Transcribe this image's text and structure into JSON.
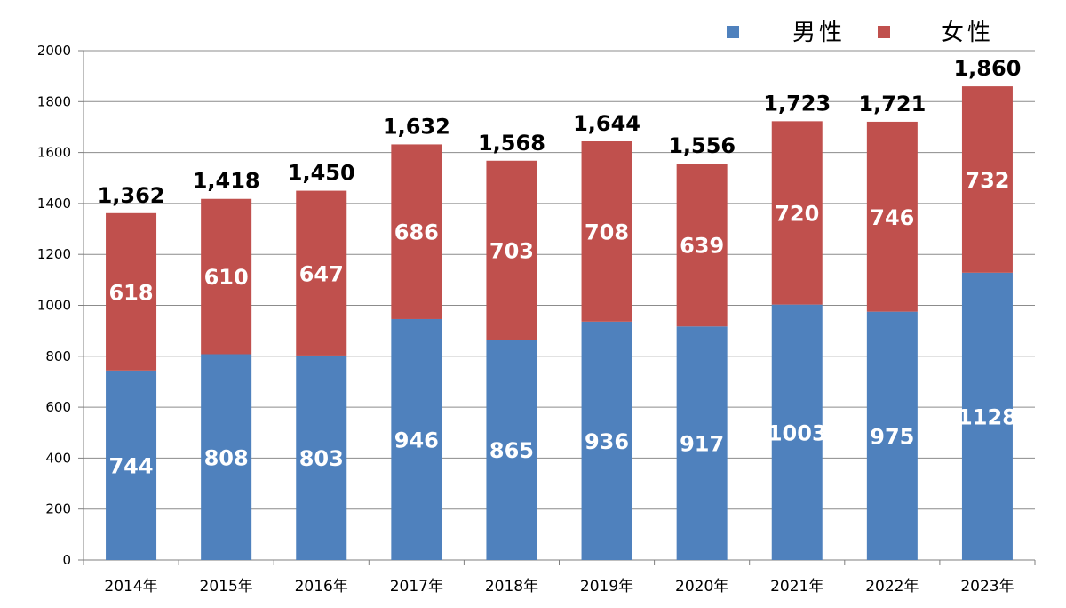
{
  "chart_data": {
    "type": "bar",
    "stacked": true,
    "categories": [
      "2014年",
      "2015年",
      "2016年",
      "2017年",
      "2018年",
      "2019年",
      "2020年",
      "2021年",
      "2022年",
      "2023年"
    ],
    "series": [
      {
        "name": "男性",
        "color": "#4F81BD",
        "values": [
          744,
          808,
          803,
          946,
          865,
          936,
          917,
          1003,
          975,
          1128
        ]
      },
      {
        "name": "女性",
        "color": "#C0504D",
        "values": [
          618,
          610,
          647,
          686,
          703,
          708,
          639,
          720,
          746,
          732
        ]
      }
    ],
    "totals": [
      "1,362",
      "1,418",
      "1,450",
      "1,632",
      "1,568",
      "1,644",
      "1,556",
      "1,723",
      "1,721",
      "1,860"
    ],
    "ylim": [
      0,
      2000
    ],
    "yticks": [
      0,
      200,
      400,
      600,
      800,
      1000,
      1200,
      1400,
      1600,
      1800,
      2000
    ],
    "grid": true,
    "legend_position": "top-right",
    "title": "",
    "xlabel": "",
    "ylabel": ""
  }
}
